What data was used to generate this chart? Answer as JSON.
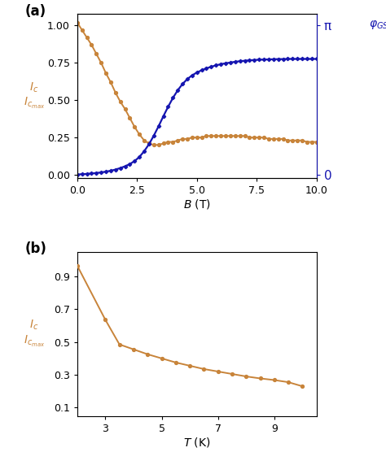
{
  "panel_a": {
    "B_orange": [
      0.0,
      0.2,
      0.4,
      0.6,
      0.8,
      1.0,
      1.2,
      1.4,
      1.6,
      1.8,
      2.0,
      2.2,
      2.4,
      2.6,
      2.8,
      3.0,
      3.2,
      3.4,
      3.6,
      3.8,
      4.0,
      4.2,
      4.4,
      4.6,
      4.8,
      5.0,
      5.2,
      5.4,
      5.6,
      5.8,
      6.0,
      6.2,
      6.4,
      6.6,
      6.8,
      7.0,
      7.2,
      7.4,
      7.6,
      7.8,
      8.0,
      8.2,
      8.4,
      8.6,
      8.8,
      9.0,
      9.2,
      9.4,
      9.6,
      9.8,
      10.0
    ],
    "Ic_orange": [
      1.02,
      0.97,
      0.92,
      0.87,
      0.81,
      0.75,
      0.68,
      0.62,
      0.55,
      0.49,
      0.44,
      0.38,
      0.32,
      0.27,
      0.23,
      0.21,
      0.2,
      0.2,
      0.21,
      0.22,
      0.22,
      0.23,
      0.24,
      0.24,
      0.25,
      0.25,
      0.25,
      0.26,
      0.26,
      0.26,
      0.26,
      0.26,
      0.26,
      0.26,
      0.26,
      0.26,
      0.25,
      0.25,
      0.25,
      0.25,
      0.24,
      0.24,
      0.24,
      0.24,
      0.23,
      0.23,
      0.23,
      0.23,
      0.22,
      0.22,
      0.22
    ],
    "B_blue": [
      0.0,
      0.2,
      0.4,
      0.6,
      0.8,
      1.0,
      1.2,
      1.4,
      1.6,
      1.8,
      2.0,
      2.2,
      2.4,
      2.6,
      2.8,
      3.0,
      3.2,
      3.4,
      3.6,
      3.8,
      4.0,
      4.2,
      4.4,
      4.6,
      4.8,
      5.0,
      5.2,
      5.4,
      5.6,
      5.8,
      6.0,
      6.2,
      6.4,
      6.6,
      6.8,
      7.0,
      7.2,
      7.4,
      7.6,
      7.8,
      8.0,
      8.2,
      8.4,
      8.6,
      8.8,
      9.0,
      9.2,
      9.4,
      9.6,
      9.8,
      10.0
    ],
    "phi_blue": [
      0.002,
      0.004,
      0.006,
      0.009,
      0.012,
      0.016,
      0.021,
      0.027,
      0.035,
      0.045,
      0.057,
      0.072,
      0.092,
      0.12,
      0.158,
      0.205,
      0.262,
      0.325,
      0.392,
      0.456,
      0.515,
      0.566,
      0.608,
      0.641,
      0.666,
      0.685,
      0.7,
      0.713,
      0.724,
      0.733,
      0.741,
      0.747,
      0.752,
      0.757,
      0.761,
      0.764,
      0.767,
      0.769,
      0.771,
      0.772,
      0.773,
      0.774,
      0.775,
      0.775,
      0.776,
      0.776,
      0.776,
      0.776,
      0.776,
      0.776,
      0.776
    ],
    "orange_color": "#C8843A",
    "blue_color": "#1515B0",
    "xlabel": "$B$ (T)",
    "xlim": [
      0.0,
      10.0
    ],
    "ylim_left": [
      -0.02,
      1.08
    ],
    "ylim_right": [
      -0.02,
      1.08
    ],
    "xticks": [
      0.0,
      2.5,
      5.0,
      7.5,
      10.0
    ],
    "xticklabels": [
      "0.0",
      "2.5",
      "5.0",
      "7.5",
      "10.0"
    ],
    "yticks_left": [
      0.0,
      0.25,
      0.5,
      0.75,
      1.0
    ],
    "yticklabels_left": [
      "0.00",
      "0.25",
      "0.50",
      "0.75",
      "1.00"
    ],
    "yticks_right_vals": [
      0.0,
      1.0
    ],
    "yticklabels_right": [
      "0",
      "π"
    ]
  },
  "panel_b": {
    "T": [
      2.0,
      3.0,
      3.5,
      4.0,
      4.5,
      5.0,
      5.5,
      6.0,
      6.5,
      7.0,
      7.5,
      8.0,
      8.5,
      9.0,
      9.5,
      10.0
    ],
    "Ic": [
      0.965,
      0.635,
      0.485,
      0.455,
      0.425,
      0.4,
      0.375,
      0.355,
      0.335,
      0.32,
      0.305,
      0.29,
      0.278,
      0.268,
      0.255,
      0.23
    ],
    "orange_color": "#C8843A",
    "xlabel": "$T$ (K)",
    "xlim": [
      2.0,
      10.5
    ],
    "ylim": [
      0.05,
      1.05
    ],
    "xticks": [
      3,
      5,
      7,
      9
    ],
    "xticklabels": [
      "3",
      "5",
      "7",
      "9"
    ],
    "yticks": [
      0.1,
      0.3,
      0.5,
      0.7,
      0.9
    ],
    "yticklabels": [
      "0.1",
      "0.3",
      "0.5",
      "0.7",
      "0.9"
    ]
  },
  "orange_color": "#C8843A",
  "blue_color": "#1515B0"
}
